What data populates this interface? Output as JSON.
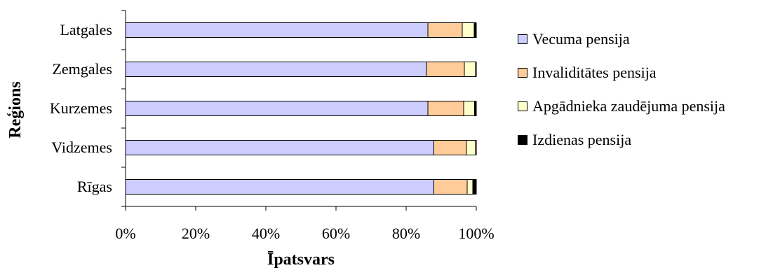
{
  "chart_data": {
    "type": "bar",
    "orientation": "horizontal",
    "stacked": "percent",
    "xlabel": "Īpatsvars",
    "ylabel": "Reģions",
    "xlim": [
      0,
      100
    ],
    "x_ticks": [
      "0%",
      "20%",
      "40%",
      "60%",
      "80%",
      "100%"
    ],
    "grid": false,
    "legend_position": "right",
    "categories": [
      "Latgales",
      "Zemgales",
      "Kurzemes",
      "Vidzemes",
      "Rīgas"
    ],
    "series": [
      {
        "name": "Vecuma pensija",
        "color": "#ccccff",
        "values": [
          86.2,
          85.8,
          86.2,
          87.9,
          87.9
        ]
      },
      {
        "name": "Invaliditātes pensija",
        "color": "#ffcc99",
        "values": [
          9.8,
          10.8,
          10.2,
          9.3,
          9.5
        ]
      },
      {
        "name": "Apgādnieka zaudējuma pensija",
        "color": "#ffffcc",
        "values": [
          3.4,
          3.2,
          3.1,
          2.6,
          1.6
        ]
      },
      {
        "name": "Izdienas pensija",
        "color": "#000000",
        "values": [
          0.6,
          0.2,
          0.5,
          0.2,
          1.0
        ]
      }
    ]
  }
}
